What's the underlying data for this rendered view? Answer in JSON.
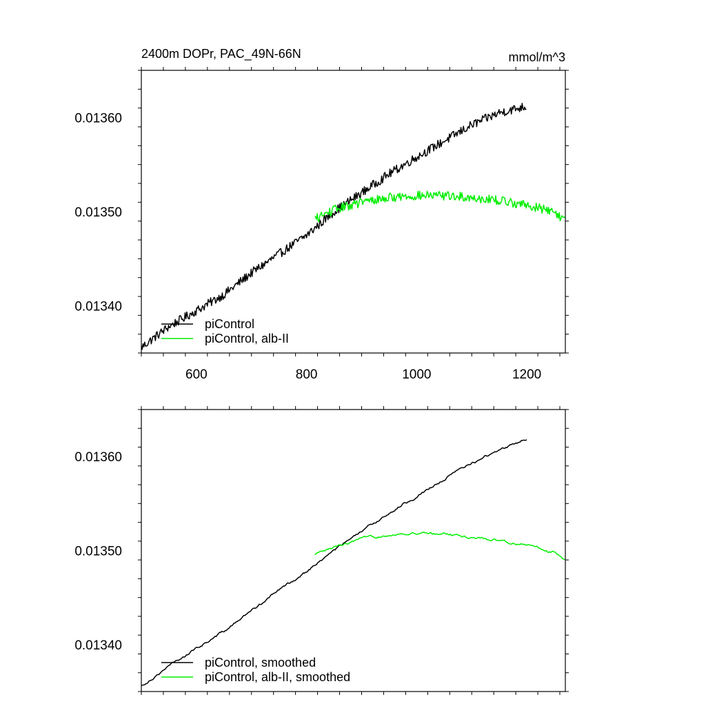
{
  "chart_data": [
    {
      "type": "line",
      "title": "2400m DOPr, PAC_49N-66N",
      "units": "mmol/m^3",
      "xlabel": "",
      "ylabel": "",
      "xlim": [
        500,
        1270
      ],
      "ylim": [
        0.01335,
        0.01365
      ],
      "xticks": [
        600,
        800,
        1000,
        1200
      ],
      "xtick_labels": [
        "600",
        "800",
        "1000",
        "1200"
      ],
      "yticks": [
        0.0134,
        0.0135,
        0.0136
      ],
      "ytick_labels": [
        "0.01340",
        "0.01350",
        "0.01360"
      ],
      "grid": false,
      "legend_position": "bottom-left",
      "series": [
        {
          "name": "piControl",
          "color": "#000000",
          "x_start": 500,
          "x_end": 1200,
          "x": [
            500,
            550,
            600,
            650,
            700,
            750,
            800,
            850,
            900,
            950,
            1000,
            1050,
            1100,
            1150,
            1200
          ],
          "y": [
            0.013356,
            0.013378,
            0.013395,
            0.013412,
            0.013435,
            0.013455,
            0.013475,
            0.0135,
            0.01352,
            0.01354,
            0.013558,
            0.013575,
            0.013592,
            0.013605,
            0.013612
          ]
        },
        {
          "name": "piControl, alb-II",
          "color": "#00ee00",
          "x_start": 815,
          "x_end": 1270,
          "x": [
            815,
            850,
            900,
            950,
            1000,
            1050,
            1100,
            1150,
            1200,
            1250,
            1270
          ],
          "y": [
            0.013492,
            0.013502,
            0.01351,
            0.013515,
            0.013517,
            0.013517,
            0.013515,
            0.013512,
            0.013507,
            0.0135,
            0.01349
          ]
        }
      ]
    },
    {
      "type": "line",
      "title": "",
      "xlabel": "",
      "ylabel": "",
      "xlim": [
        500,
        1270
      ],
      "ylim": [
        0.01335,
        0.01365
      ],
      "xticks": [
        600,
        800,
        1000,
        1200
      ],
      "yticks": [
        0.0134,
        0.0135,
        0.0136
      ],
      "ytick_labels": [
        "0.01340",
        "0.01350",
        "0.01360"
      ],
      "grid": false,
      "legend_position": "bottom-left",
      "series": [
        {
          "name": "piControl, smoothed",
          "color": "#000000",
          "x_start": 500,
          "x_end": 1200,
          "x": [
            500,
            550,
            600,
            650,
            700,
            750,
            800,
            850,
            900,
            950,
            1000,
            1050,
            1100,
            1150,
            1200
          ],
          "y": [
            0.013356,
            0.013377,
            0.013396,
            0.013414,
            0.013436,
            0.013458,
            0.013478,
            0.0135,
            0.01352,
            0.01354,
            0.013558,
            0.013576,
            0.013593,
            0.013607,
            0.013619
          ]
        },
        {
          "name": "piControl, alb-II, smoothed",
          "color": "#00ee00",
          "x_start": 815,
          "x_end": 1270,
          "x": [
            815,
            850,
            900,
            950,
            1000,
            1050,
            1100,
            1150,
            1200,
            1250,
            1270
          ],
          "y": [
            0.013495,
            0.013503,
            0.013512,
            0.013517,
            0.013518,
            0.013518,
            0.013514,
            0.013511,
            0.013506,
            0.013498,
            0.01349
          ]
        }
      ]
    }
  ]
}
